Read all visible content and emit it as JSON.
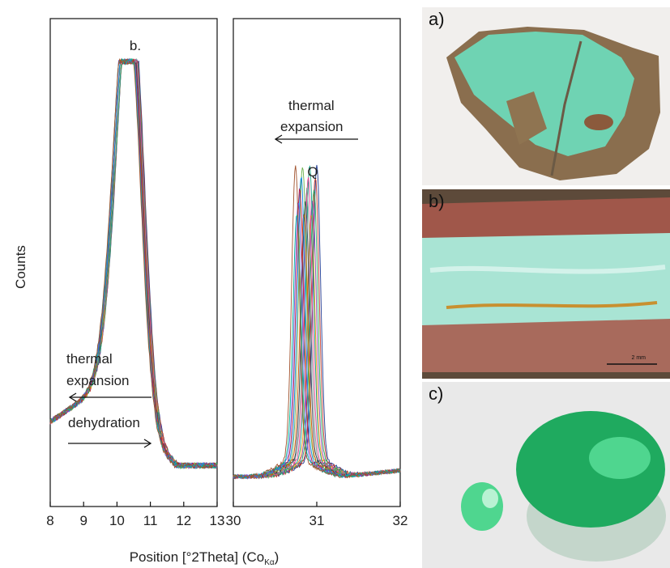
{
  "chart_data": {
    "type": "line",
    "ylabel": "Counts",
    "xlabel_main": "Position [°2Theta] (Co",
    "xlabel_sub": "Kα",
    "xlabel_close": ")",
    "panels": [
      {
        "name": "left",
        "xlim": [
          8,
          13
        ],
        "ticks": [
          "8",
          "9",
          "10",
          "11",
          "12",
          "13"
        ],
        "tick_values": [
          8,
          9,
          10,
          11,
          12,
          13
        ],
        "peak_label": "b.",
        "annotations": [
          {
            "text": "thermal",
            "arrow": "left"
          },
          {
            "text": "expansion",
            "arrow": "left"
          },
          {
            "text": "dehydration",
            "arrow": "right"
          }
        ]
      },
      {
        "name": "right",
        "xlim": [
          30,
          32
        ],
        "ticks": [
          "30",
          "31",
          "32"
        ],
        "tick_values": [
          30,
          31,
          32
        ],
        "peak_label": "Q",
        "annotations": [
          {
            "text": "thermal",
            "arrow": "left"
          },
          {
            "text": "expansion",
            "arrow": "left"
          }
        ]
      }
    ],
    "series_colors": [
      "#1f3a93",
      "#c0392b",
      "#27ae60",
      "#8e44ad",
      "#f39c12",
      "#16a085",
      "#e84393",
      "#7f8c8d",
      "#2c3e50",
      "#d35400",
      "#6ab04c",
      "#0984e3",
      "#b71540",
      "#6c5ce7",
      "#00b894",
      "#a0522d"
    ],
    "left_peak": {
      "center_start": 10.47,
      "center_shift": -0.008,
      "height": 0.95,
      "tail_level": 0.16
    },
    "right_peak": {
      "center_start": 31.0,
      "center_shift": -0.009,
      "height": 0.97,
      "baseline": 0.05
    }
  },
  "photos": {
    "a": {
      "label": "a)",
      "colors": [
        "#f2f0ee",
        "#8a6e4e",
        "#6fd3b3"
      ]
    },
    "b": {
      "label": "b)",
      "scale_text": "2 mm",
      "colors": [
        "#a0574a",
        "#a9e4d4",
        "#c89030"
      ]
    },
    "c": {
      "label": "c)",
      "colors": [
        "#e9e9e9",
        "#1faa5f",
        "#4fd68f"
      ]
    }
  }
}
